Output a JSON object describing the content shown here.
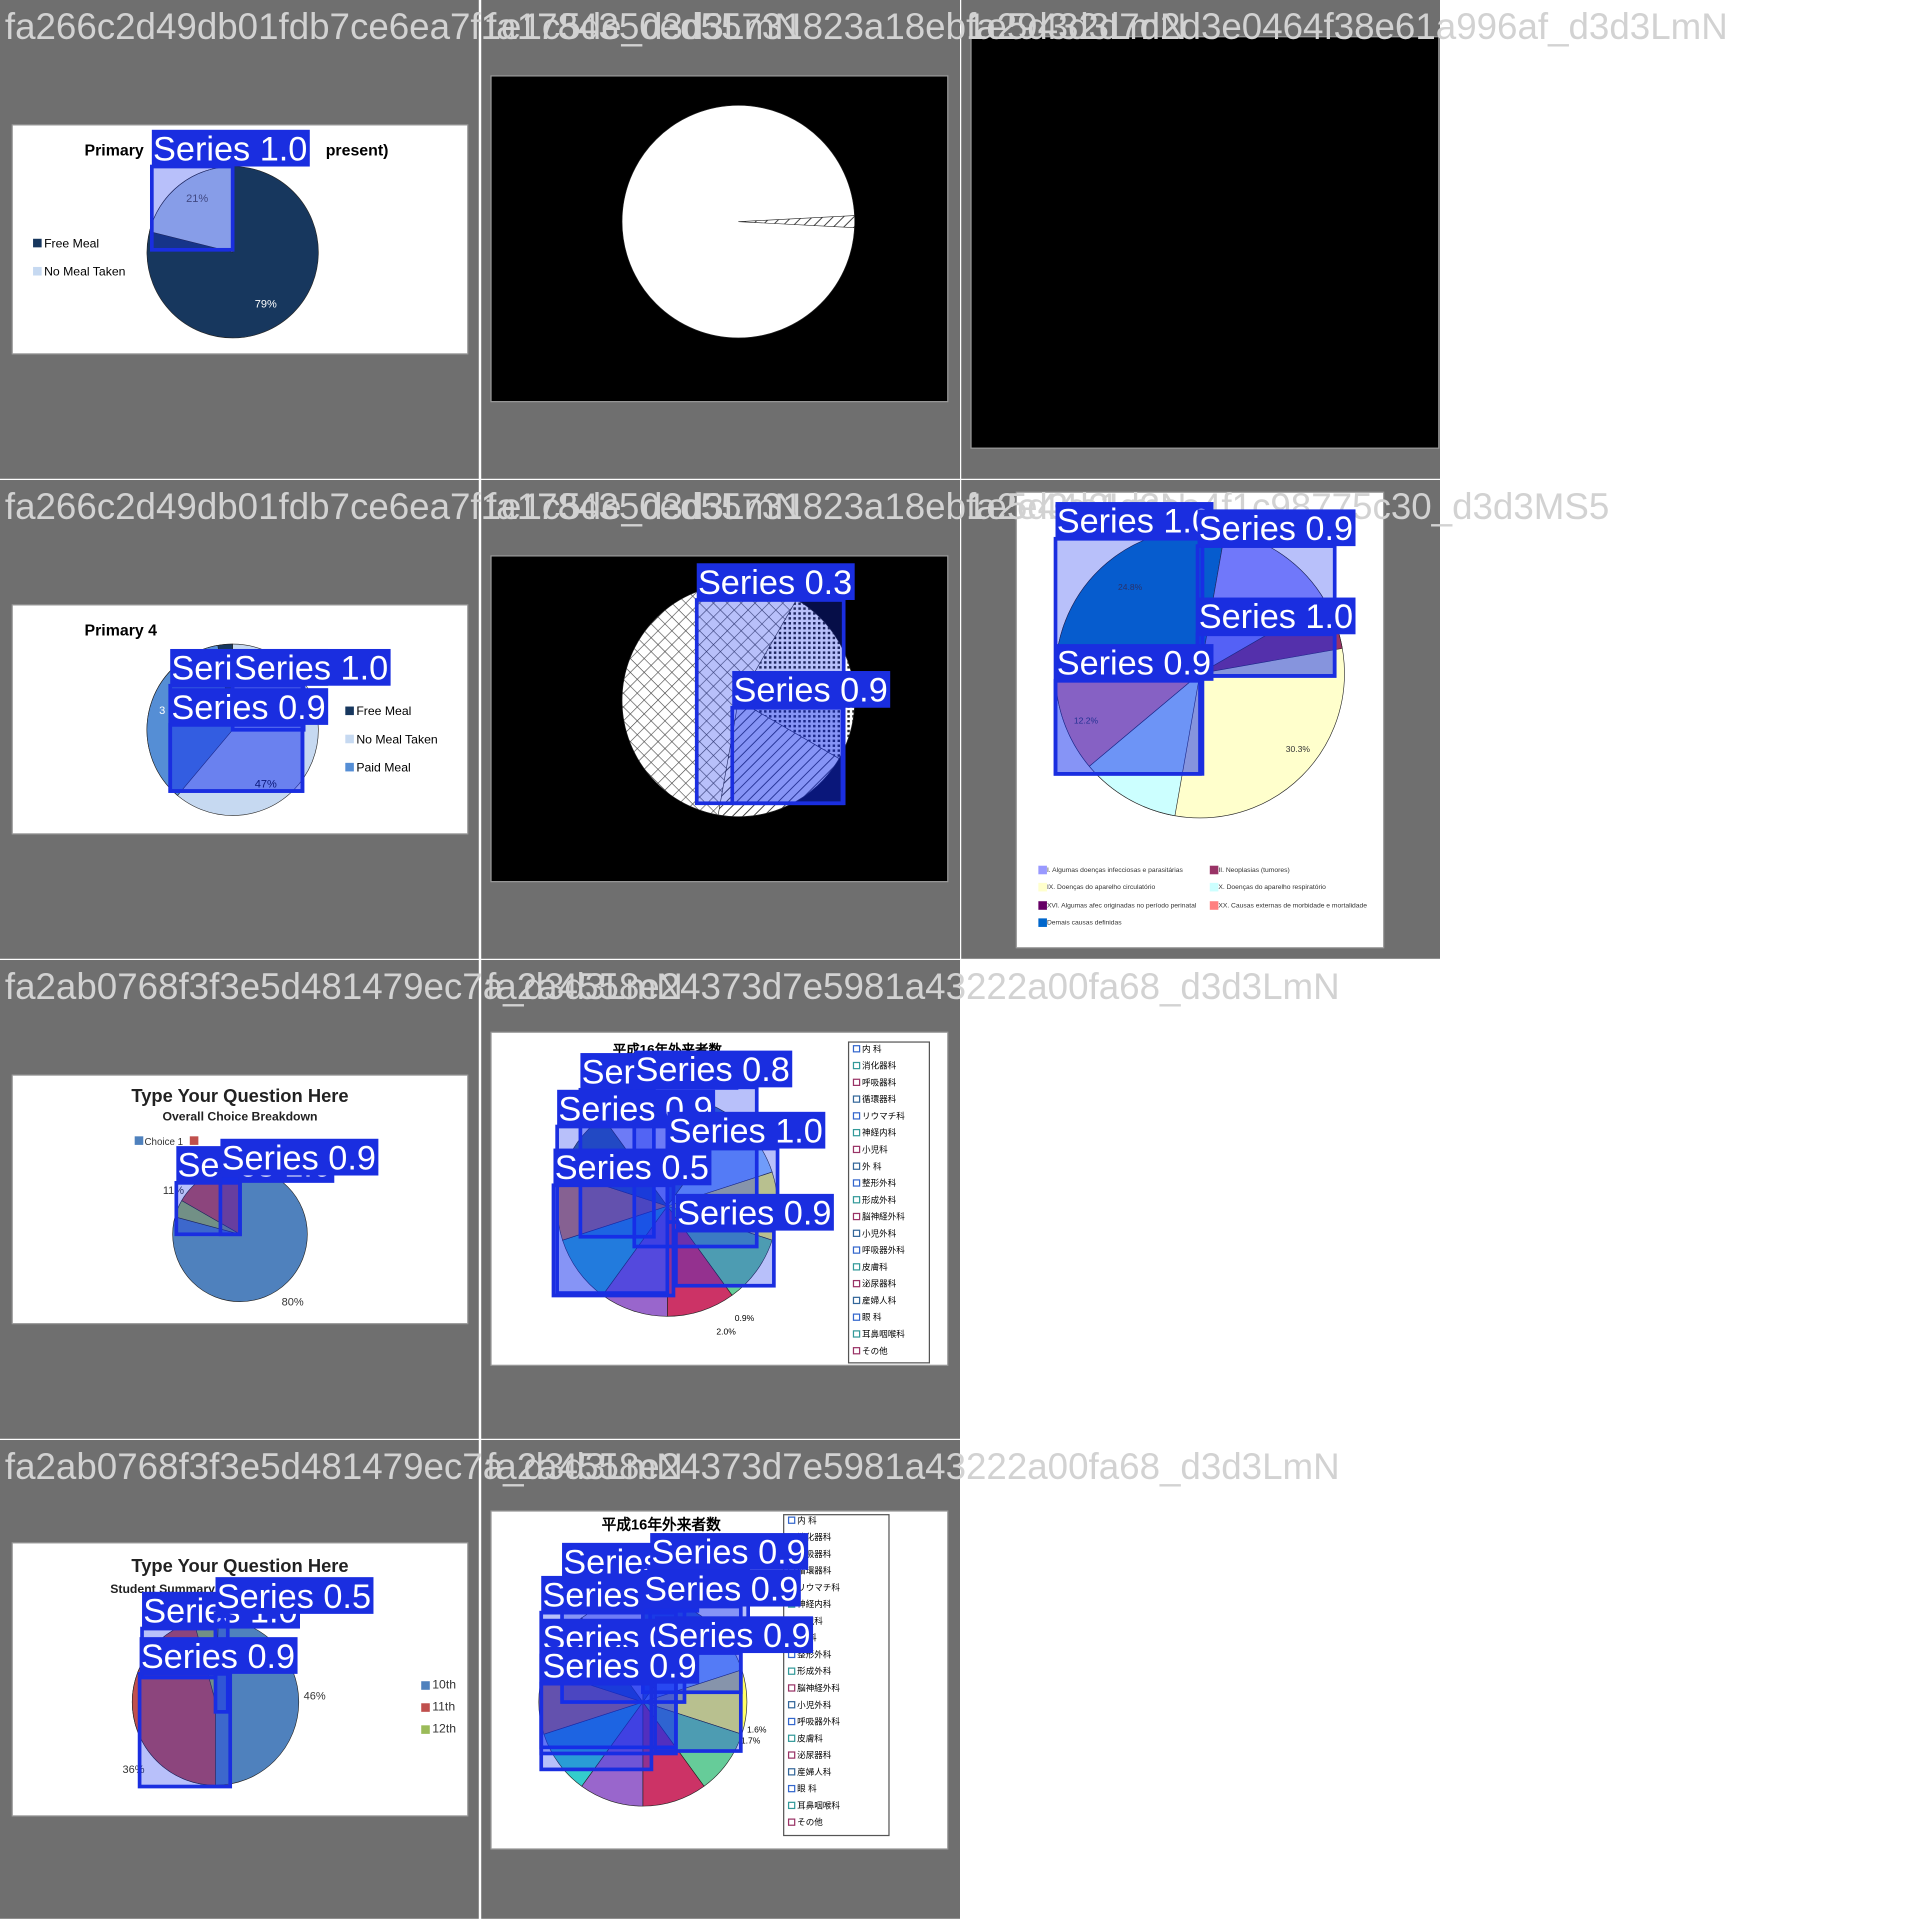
{
  "tiles": [
    {
      "filename": "fa266c2d49db01fdb7ce6ea7f1e1c5de_d3d3LmN",
      "texts": [
        "Primary",
        "present)",
        "Free Meal",
        "No Meal Taken",
        "21%",
        "79%"
      ],
      "detections": [
        {
          "label": "Series 1.0"
        }
      ]
    },
    {
      "filename": "fa1784350ed55731823a18eb1e5d3d3LmN",
      "texts": [],
      "detections": []
    },
    {
      "filename": "fa29432d7d2d3e0464f38e61a996af_d3d3LmN",
      "texts": [],
      "detections": []
    },
    {
      "filename": "fa266c2d49db01fdb7ce6ea7f1e1c5de_d3d3LmN",
      "texts": [
        "Primary 4",
        "Free Meal",
        "No Meal Taken",
        "Paid Meal",
        "3 %",
        "47%"
      ],
      "detections": [
        {
          "label": "Series 0.9"
        },
        {
          "label": "Series 1.0"
        },
        {
          "label": "Series 0.9"
        }
      ]
    },
    {
      "filename": "fa1784350ed55731823a18eb1e5d3d3LmN",
      "texts": [],
      "detections": [
        {
          "label": "Series 0.3"
        },
        {
          "label": "Series 0.9"
        }
      ]
    },
    {
      "filename": "fa2e44e1d3ee4f1c98775c30_d3d3MS5",
      "texts": [
        "24.8%",
        "30.3%",
        "12.2%",
        "I. Algumas doenças infecciosas e parasitárias",
        "II. Neoplasias (tumores)",
        "IX. Doenças do aparelho circulatório",
        "X. Doenças do aparelho respiratório",
        "XVI. Algumas afec originadas no período perinatal",
        "XX. Causas externas de morbidade e mortalidade",
        "Demais causas definidas"
      ],
      "detections": [
        {
          "label": "Series 1.0"
        },
        {
          "label": "Series 0.9"
        },
        {
          "label": "Series 1.0"
        },
        {
          "label": "Series 0.9"
        }
      ]
    },
    {
      "filename": "fa2ab0768f3f3e5d481479ec7a_d3d3LmN",
      "texts": [
        "Type Your Question Here",
        "Overall Choice Breakdown",
        "Choice 1",
        "11%",
        "80%"
      ],
      "detections": [
        {
          "label": "Series 1.0"
        },
        {
          "label": "Series 0.9"
        }
      ]
    },
    {
      "filename": "fa2a4558e24373d7e5981a43222a00fa68_d3d3LmN",
      "texts": [
        "平成16年外来者数",
        "0.9%",
        "2.0%"
      ],
      "legend": [
        "内 科",
        "消化器科",
        "呼吸器科",
        "循環器科",
        "リウマチ科",
        "神経内科",
        "小児科",
        "外 科",
        "整形外科",
        "形成外科",
        "脳神経外科",
        "小児外科",
        "呼吸器外科",
        "皮膚科",
        "泌尿器科",
        "産婦人科",
        "眼 科",
        "耳鼻咽喉科",
        "その他"
      ],
      "detections": [
        {
          "label": "Series 0.9"
        },
        {
          "label": "Series 0.8"
        },
        {
          "label": "Series 0.9"
        },
        {
          "label": "Series 1.0"
        },
        {
          "label": "Series 0.5"
        },
        {
          "label": "Series 0.9"
        }
      ]
    },
    {
      "filename": "fa2ab0768f3f3e5d481479ec7a_d3d3LmN",
      "texts": [
        "Type Your Question Here",
        "Student Summary",
        "10th",
        "11th",
        "12th",
        "46%",
        "36%"
      ],
      "detections": [
        {
          "label": "Series 1.0"
        },
        {
          "label": "Series 0.5"
        },
        {
          "label": "Series 0.9"
        }
      ]
    },
    {
      "filename": "fa2a4558e24373d7e5981a43222a00fa68_d3d3LmN",
      "texts": [
        "平成16年外来者数",
        "1.6%",
        "1.7%"
      ],
      "legend": [
        "内 科",
        "消化器科",
        "呼吸器科",
        "循環器科",
        "リウマチ科",
        "神経内科",
        "小児科",
        "外 科",
        "整形外科",
        "形成外科",
        "脳神経外科",
        "小児外科",
        "呼吸器外科",
        "皮膚科",
        "泌尿器科",
        "産婦人科",
        "眼 科",
        "耳鼻咽喉科",
        "その他"
      ],
      "detections": [
        {
          "label": "Series 0.9"
        },
        {
          "label": "Series 0.9"
        },
        {
          "label": "Series 0.9"
        },
        {
          "label": "Series 0.9"
        },
        {
          "label": "Series 0.9"
        },
        {
          "label": "Series 0.9"
        },
        {
          "label": "Series 0.9"
        }
      ]
    }
  ]
}
